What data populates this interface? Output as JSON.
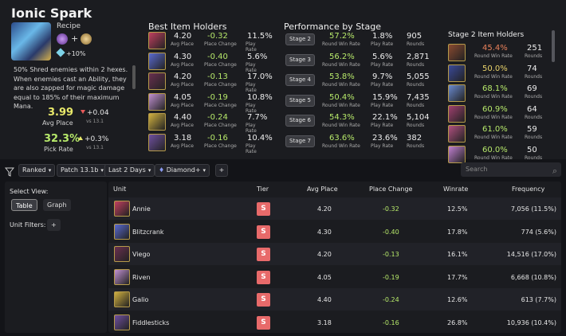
{
  "item": {
    "title": "Ionic Spark",
    "recipe_label": "Recipe",
    "stat_bonus": "+10%",
    "description": "50% Shred enemies within 2 hexes. When enemies cast an Ability, they are also zapped for magic damage equal to 185% of their maximum Mana.",
    "avg_place": "3.99",
    "avg_place_label": "Avg Place",
    "avg_place_delta": "+0.04",
    "avg_place_vs": "vs 13.1",
    "pick_rate": "32.3%",
    "pick_rate_label": "Pick Rate",
    "pick_rate_delta": "+0.3%",
    "pick_rate_vs": "vs 13.1"
  },
  "best_holders": {
    "title": "Best Item Holders",
    "labels": {
      "avg": "Avg Place",
      "change": "Place Change",
      "play": "Play Rate"
    },
    "rows": [
      {
        "avg": "4.20",
        "change": "-0.32",
        "play": "11.5%"
      },
      {
        "avg": "4.30",
        "change": "-0.40",
        "play": "5.6%"
      },
      {
        "avg": "4.20",
        "change": "-0.13",
        "play": "17.0%"
      },
      {
        "avg": "4.05",
        "change": "-0.19",
        "play": "10.8%"
      },
      {
        "avg": "4.40",
        "change": "-0.24",
        "play": "7.7%"
      },
      {
        "avg": "3.18",
        "change": "-0.16",
        "play": "10.4%"
      }
    ]
  },
  "performance": {
    "title": "Performance by Stage",
    "labels": {
      "win": "Round Win Rate",
      "play": "Play Rate",
      "rounds": "Rounds"
    },
    "rows": [
      {
        "stage": "Stage 2",
        "win": "57.2%",
        "play": "1.8%",
        "rounds": "905"
      },
      {
        "stage": "Stage 3",
        "win": "56.2%",
        "play": "5.6%",
        "rounds": "2,871"
      },
      {
        "stage": "Stage 4",
        "win": "53.8%",
        "play": "9.7%",
        "rounds": "5,055"
      },
      {
        "stage": "Stage 5",
        "win": "50.4%",
        "play": "15.9%",
        "rounds": "7,435"
      },
      {
        "stage": "Stage 6",
        "win": "54.3%",
        "play": "22.1%",
        "rounds": "5,104"
      },
      {
        "stage": "Stage 7",
        "win": "63.6%",
        "play": "23.6%",
        "rounds": "382"
      }
    ]
  },
  "stage2_holders": {
    "title": "Stage 2 Item Holders",
    "labels": {
      "win": "Round Win Rate",
      "rounds": "Rounds"
    },
    "rows": [
      {
        "win": "45.4%",
        "rounds": "251",
        "color": "#e8805a"
      },
      {
        "win": "50.0%",
        "rounds": "74",
        "color": "#e8d26a"
      },
      {
        "win": "68.1%",
        "rounds": "69",
        "color": "#b6e86a"
      },
      {
        "win": "60.9%",
        "rounds": "64",
        "color": "#b6e86a"
      },
      {
        "win": "61.0%",
        "rounds": "59",
        "color": "#b6e86a"
      },
      {
        "win": "60.0%",
        "rounds": "50",
        "color": "#b6e86a"
      }
    ]
  },
  "filters": {
    "queue": "Ranked",
    "patch": "Patch 13.1b",
    "period": "Last 2 Days",
    "rank": "Diamond+",
    "add": "+",
    "search_placeholder": "Search"
  },
  "side": {
    "select_view": "Select View:",
    "table": "Table",
    "graph": "Graph",
    "unit_filters": "Unit Filters:",
    "add": "+"
  },
  "table": {
    "headers": {
      "unit": "Unit",
      "tier": "Tier",
      "avg": "Avg Place",
      "change": "Place Change",
      "winrate": "Winrate",
      "freq": "Frequency"
    },
    "rows": [
      {
        "unit": "Annie",
        "tier": "S",
        "avg": "4.20",
        "change": "-0.32",
        "winrate": "12.5%",
        "freq": "7,056 (11.5%)"
      },
      {
        "unit": "Blitzcrank",
        "tier": "S",
        "avg": "4.30",
        "change": "-0.40",
        "winrate": "17.8%",
        "freq": "774 (5.6%)"
      },
      {
        "unit": "Viego",
        "tier": "S",
        "avg": "4.20",
        "change": "-0.13",
        "winrate": "16.1%",
        "freq": "14,516 (17.0%)"
      },
      {
        "unit": "Riven",
        "tier": "S",
        "avg": "4.05",
        "change": "-0.19",
        "winrate": "17.7%",
        "freq": "6,668 (10.8%)"
      },
      {
        "unit": "Galio",
        "tier": "S",
        "avg": "4.40",
        "change": "-0.24",
        "winrate": "12.6%",
        "freq": "613 (7.7%)"
      },
      {
        "unit": "Fiddlesticks",
        "tier": "S",
        "avg": "3.18",
        "change": "-0.16",
        "winrate": "26.8%",
        "freq": "10,936 (10.4%)"
      }
    ]
  },
  "colors": {
    "accent_yellow": "#e8e86a",
    "accent_green": "#b6e86a",
    "tier_s": "#e86a6a",
    "panel": "#1b1c20",
    "background": "#131418"
  },
  "unit_icons": [
    "annie-icon",
    "blitzcrank-icon",
    "viego-icon",
    "riven-icon",
    "galio-icon",
    "fiddlesticks-icon"
  ]
}
